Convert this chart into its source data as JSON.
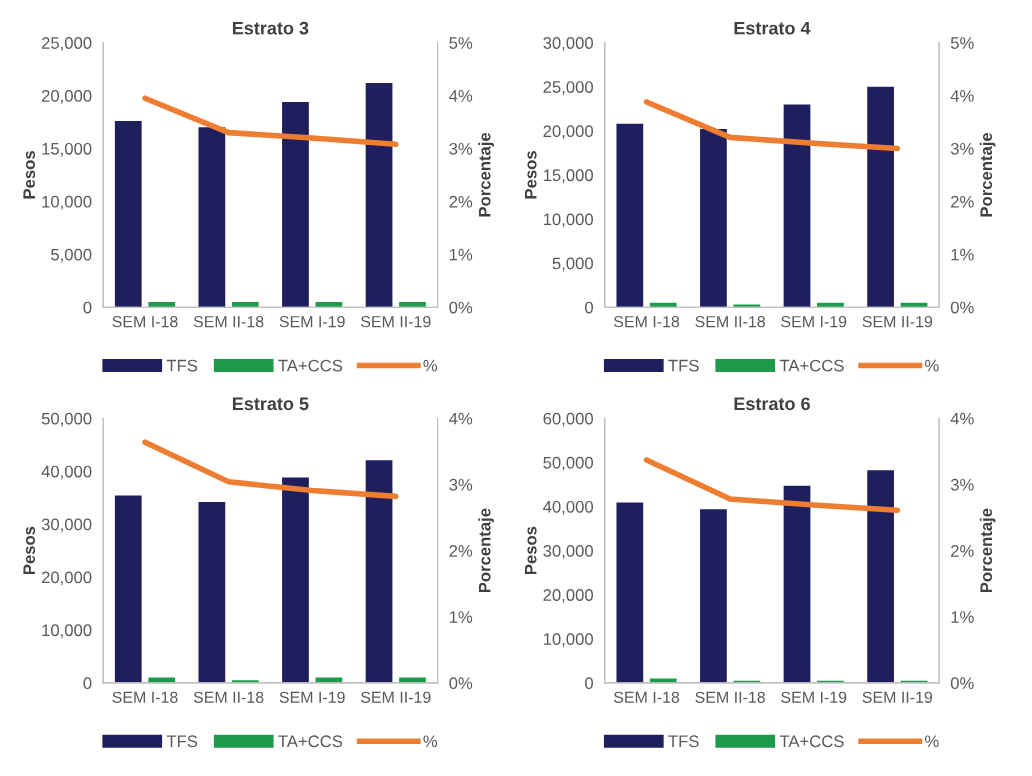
{
  "chart_data": [
    {
      "type": "bar",
      "title": "Estrato 3",
      "ylabel": "Pesos",
      "y2label": "Porcentaje",
      "categories": [
        "SEM I-18",
        "SEM II-18",
        "SEM I-19",
        "SEM II-19"
      ],
      "ylim": [
        0,
        25000
      ],
      "yticks": [
        {
          "value": 0,
          "label": "0"
        },
        {
          "value": 5000,
          "label": "5,000"
        },
        {
          "value": 10000,
          "label": "10,000"
        },
        {
          "value": 15000,
          "label": "15,000"
        },
        {
          "value": 20000,
          "label": "20,000"
        },
        {
          "value": 25000,
          "label": "25,000"
        }
      ],
      "y2lim": [
        0,
        5
      ],
      "y2ticks": [
        {
          "value": 0,
          "label": "0%"
        },
        {
          "value": 1,
          "label": "1%"
        },
        {
          "value": 2,
          "label": "2%"
        },
        {
          "value": 3,
          "label": "3%"
        },
        {
          "value": 4,
          "label": "4%"
        },
        {
          "value": 5,
          "label": "5%"
        }
      ],
      "legend": "bottom",
      "grid": false,
      "series": [
        {
          "name": "TFS",
          "color": "#1f1f5e",
          "values": [
            17600,
            17000,
            19400,
            21200
          ]
        },
        {
          "name": "TA+CCS",
          "color": "#1e9b4a",
          "values": [
            500,
            500,
            500,
            500
          ]
        },
        {
          "name": "%",
          "type": "line",
          "axis": "y2",
          "color": "#ed7d31",
          "values": [
            3.95,
            3.3,
            3.2,
            3.08
          ]
        }
      ]
    },
    {
      "type": "bar",
      "title": "Estrato 4",
      "ylabel": "Pesos",
      "y2label": "Porcentaje",
      "categories": [
        "SEM I-18",
        "SEM II-18",
        "SEM I-19",
        "SEM II-19"
      ],
      "ylim": [
        0,
        30000
      ],
      "yticks": [
        {
          "value": 0,
          "label": "0"
        },
        {
          "value": 5000,
          "label": "5,000"
        },
        {
          "value": 10000,
          "label": "10,000"
        },
        {
          "value": 15000,
          "label": "15,000"
        },
        {
          "value": 20000,
          "label": "20,000"
        },
        {
          "value": 25000,
          "label": "25,000"
        },
        {
          "value": 30000,
          "label": "30,000"
        }
      ],
      "y2lim": [
        0,
        5
      ],
      "y2ticks": [
        {
          "value": 0,
          "label": "0%"
        },
        {
          "value": 1,
          "label": "1%"
        },
        {
          "value": 2,
          "label": "2%"
        },
        {
          "value": 3,
          "label": "3%"
        },
        {
          "value": 4,
          "label": "4%"
        },
        {
          "value": 5,
          "label": "5%"
        }
      ],
      "legend": "bottom",
      "grid": false,
      "series": [
        {
          "name": "TFS",
          "color": "#1f1f5e",
          "values": [
            20800,
            20200,
            23000,
            25000
          ]
        },
        {
          "name": "TA+CCS",
          "color": "#1e9b4a",
          "values": [
            500,
            300,
            500,
            500
          ]
        },
        {
          "name": "%",
          "type": "line",
          "axis": "y2",
          "color": "#ed7d31",
          "values": [
            3.88,
            3.21,
            3.1,
            3.0
          ]
        }
      ]
    },
    {
      "type": "bar",
      "title": "Estrato 5",
      "ylabel": "Pesos",
      "y2label": "Porcentaje",
      "categories": [
        "SEM I-18",
        "SEM II-18",
        "SEM I-19",
        "SEM II-19"
      ],
      "ylim": [
        0,
        50000
      ],
      "yticks": [
        {
          "value": 0,
          "label": "0"
        },
        {
          "value": 10000,
          "label": "10,000"
        },
        {
          "value": 20000,
          "label": "20,000"
        },
        {
          "value": 30000,
          "label": "30,000"
        },
        {
          "value": 40000,
          "label": "40,000"
        },
        {
          "value": 50000,
          "label": "50,000"
        }
      ],
      "y2lim": [
        0,
        4
      ],
      "y2ticks": [
        {
          "value": 0,
          "label": "0%"
        },
        {
          "value": 1,
          "label": "1%"
        },
        {
          "value": 2,
          "label": "2%"
        },
        {
          "value": 3,
          "label": "3%"
        },
        {
          "value": 4,
          "label": "4%"
        }
      ],
      "legend": "bottom",
      "grid": false,
      "series": [
        {
          "name": "TFS",
          "color": "#1f1f5e",
          "values": [
            35400,
            34200,
            38800,
            42100
          ]
        },
        {
          "name": "TA+CCS",
          "color": "#1e9b4a",
          "values": [
            1000,
            500,
            1000,
            1000
          ]
        },
        {
          "name": "%",
          "type": "line",
          "axis": "y2",
          "color": "#ed7d31",
          "values": [
            3.64,
            3.04,
            2.91,
            2.82
          ]
        }
      ]
    },
    {
      "type": "bar",
      "title": "Estrato 6",
      "ylabel": "Pesos",
      "y2label": "Porcentaje",
      "categories": [
        "SEM I-18",
        "SEM II-18",
        "SEM I-19",
        "SEM II-19"
      ],
      "ylim": [
        0,
        60000
      ],
      "yticks": [
        {
          "value": 0,
          "label": "0"
        },
        {
          "value": 10000,
          "label": "10,000"
        },
        {
          "value": 20000,
          "label": "20,000"
        },
        {
          "value": 30000,
          "label": "30,000"
        },
        {
          "value": 40000,
          "label": "40,000"
        },
        {
          "value": 50000,
          "label": "50,000"
        },
        {
          "value": 60000,
          "label": "60,000"
        }
      ],
      "y2lim": [
        0,
        4
      ],
      "y2ticks": [
        {
          "value": 0,
          "label": "0%"
        },
        {
          "value": 1,
          "label": "1%"
        },
        {
          "value": 2,
          "label": "2%"
        },
        {
          "value": 3,
          "label": "3%"
        },
        {
          "value": 4,
          "label": "4%"
        }
      ],
      "legend": "bottom",
      "grid": false,
      "series": [
        {
          "name": "TFS",
          "color": "#1f1f5e",
          "values": [
            40900,
            39400,
            44700,
            48200
          ]
        },
        {
          "name": "TA+CCS",
          "color": "#1e9b4a",
          "values": [
            1000,
            500,
            500,
            500
          ]
        },
        {
          "name": "%",
          "type": "line",
          "axis": "y2",
          "color": "#ed7d31",
          "values": [
            3.37,
            2.78,
            2.69,
            2.61
          ]
        }
      ]
    }
  ]
}
